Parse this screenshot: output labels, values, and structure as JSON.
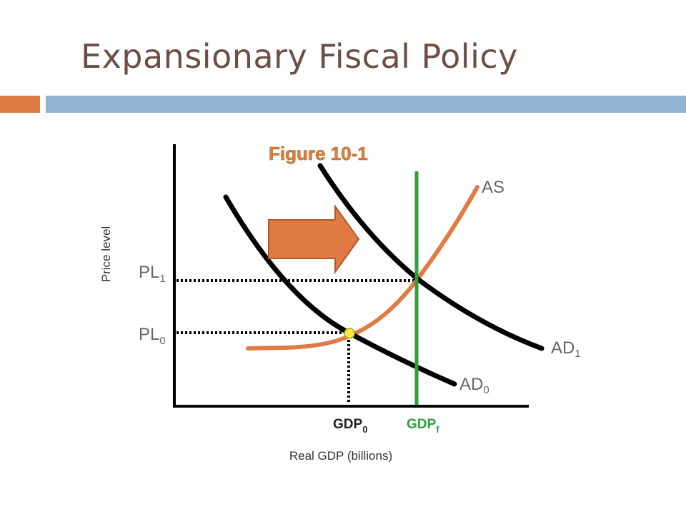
{
  "slide": {
    "title": "Expansionary Fiscal Policy",
    "accent_color": "#e07b45",
    "band_color": "#94b4d3",
    "title_color": "#6b4f45"
  },
  "figure": {
    "label": "Figure 10-1",
    "y_axis_title": "Price level",
    "x_axis_title": "Real GDP (billions)",
    "curves": {
      "as": {
        "label": "AS",
        "color": "#e07b45"
      },
      "ad0": {
        "label_main": "AD",
        "label_sub": "0",
        "color": "#000000"
      },
      "ad1": {
        "label_main": "AD",
        "label_sub": "1",
        "color": "#000000"
      },
      "potential": {
        "color": "#2e9e3a"
      }
    },
    "levels": {
      "pl1_main": "PL",
      "pl1_sub": "1",
      "pl0_main": "PL",
      "pl0_sub": "0",
      "gdp0_main": "GDP",
      "gdp0_sub": "0",
      "gdpf_main": "GDP",
      "gdpf_sub": "f"
    },
    "shift_arrow": {
      "direction": "right",
      "color": "#e07b45"
    },
    "equilibrium_marker": {
      "color": "#f5e84a"
    }
  }
}
